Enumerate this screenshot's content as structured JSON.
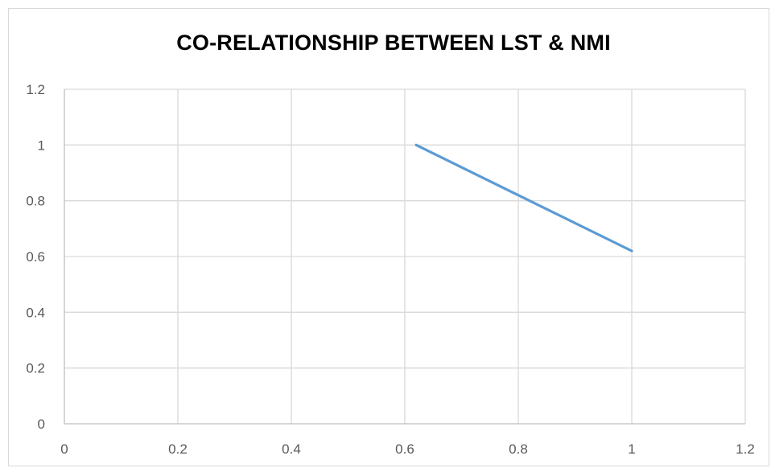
{
  "chart_data": {
    "type": "scatter",
    "title": "CO-RELATIONSHIP BETWEEN LST & NMI",
    "xlabel": "",
    "ylabel": "",
    "xlim": [
      0,
      1.2
    ],
    "ylim": [
      0,
      1.2
    ],
    "x_ticks": [
      "0",
      "0.2",
      "0.4",
      "0.6",
      "0.8",
      "1",
      "1.2"
    ],
    "y_ticks": [
      "0",
      "0.2",
      "0.4",
      "0.6",
      "0.8",
      "1",
      "1.2"
    ],
    "grid": true,
    "series": [
      {
        "x": [
          0.62,
          1.0
        ],
        "y": [
          1.0,
          0.62
        ],
        "color": "#5b9bd5",
        "mode": "line"
      }
    ]
  }
}
